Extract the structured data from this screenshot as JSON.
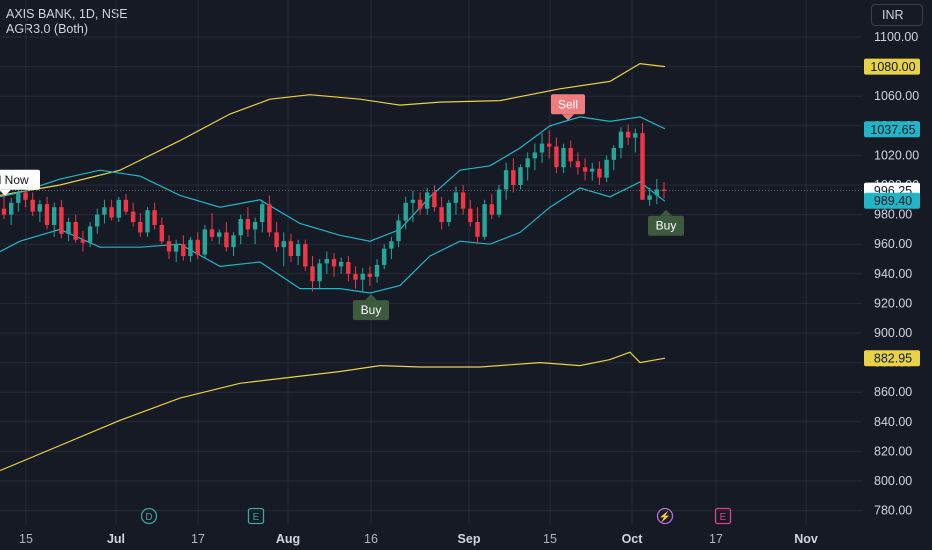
{
  "header": {
    "symbol_line": "AXIS BANK, 1D, NSE",
    "indicator_line": "AGR3.0 (Both)"
  },
  "currency_button": "INR",
  "colors": {
    "background": "#161a25",
    "up_candle": "#26a69a",
    "down_candle": "#f23645",
    "bollinger_band": "#1fb6c8",
    "envelope_band": "#e8d245",
    "sell_label": "#f07d7d",
    "buy_label": "#3d5a3f"
  },
  "chart_data": {
    "type": "candlestick",
    "title": "AXIS BANK, 1D, NSE",
    "ylim": [
      770,
      1110
    ],
    "y_ticks": [
      780,
      800,
      820,
      840,
      860,
      880,
      900,
      920,
      940,
      960,
      980,
      1000,
      1020,
      1040,
      1060,
      1080,
      1100
    ],
    "y_tick_labels": [
      "780.00",
      "800.00",
      "820.00",
      "840.00",
      "860.00",
      "880.00",
      "900.00",
      "920.00",
      "940.00",
      "960.00",
      "980.00",
      "1000.00",
      "1020.00",
      "1040.00",
      "1060.00",
      "1080.00",
      "1100.00"
    ],
    "x_tick_labels": [
      {
        "label": "15",
        "bold": false
      },
      {
        "label": "Jul",
        "bold": true
      },
      {
        "label": "17",
        "bold": false
      },
      {
        "label": "Aug",
        "bold": true
      },
      {
        "label": "16",
        "bold": false
      },
      {
        "label": "Sep",
        "bold": true
      },
      {
        "label": "15",
        "bold": false
      },
      {
        "label": "Oct",
        "bold": true
      },
      {
        "label": "17",
        "bold": false
      },
      {
        "label": "Nov",
        "bold": true
      }
    ],
    "price_badges": [
      {
        "label": "1080.00",
        "value": 1080.0,
        "kind": "envelope"
      },
      {
        "label": "1037.65",
        "value": 1037.65,
        "kind": "band"
      },
      {
        "label": "996.25",
        "value": 996.25,
        "kind": "last"
      },
      {
        "label": "989.40",
        "value": 989.4,
        "kind": "band"
      },
      {
        "label": "882.95",
        "value": 882.95,
        "kind": "envelope"
      }
    ],
    "signals": [
      {
        "label": "Sell Now",
        "kind": "sell-now",
        "price": 990
      },
      {
        "label": "Sell",
        "kind": "sell",
        "price": 1041
      },
      {
        "label": "Buy",
        "kind": "buy",
        "price": 929
      },
      {
        "label": "Buy",
        "kind": "buy",
        "price": 986
      }
    ],
    "event_markers": [
      "D",
      "E",
      "⚡",
      "E"
    ],
    "candles": [
      [
        984,
        994,
        977,
        980
      ],
      [
        980,
        991,
        973,
        988
      ],
      [
        988,
        999,
        982,
        995
      ],
      [
        995,
        1003,
        985,
        990
      ],
      [
        990,
        995,
        979,
        982
      ],
      [
        982,
        990,
        975,
        987
      ],
      [
        987,
        992,
        970,
        973
      ],
      [
        973,
        988,
        965,
        985
      ],
      [
        985,
        990,
        964,
        967
      ],
      [
        967,
        978,
        962,
        975
      ],
      [
        975,
        980,
        961,
        963
      ],
      [
        963,
        969,
        955,
        961
      ],
      [
        961,
        975,
        958,
        972
      ],
      [
        972,
        984,
        967,
        980
      ],
      [
        980,
        990,
        974,
        985
      ],
      [
        985,
        990,
        976,
        978
      ],
      [
        978,
        992,
        975,
        990
      ],
      [
        990,
        994,
        980,
        982
      ],
      [
        982,
        988,
        972,
        975
      ],
      [
        975,
        981,
        965,
        968
      ],
      [
        968,
        985,
        965,
        983
      ],
      [
        983,
        988,
        970,
        973
      ],
      [
        973,
        978,
        960,
        962
      ],
      [
        962,
        966,
        950,
        955
      ],
      [
        955,
        963,
        948,
        960
      ],
      [
        960,
        966,
        949,
        952
      ],
      [
        952,
        965,
        948,
        963
      ],
      [
        963,
        968,
        950,
        953
      ],
      [
        953,
        973,
        951,
        970
      ],
      [
        970,
        981,
        962,
        965
      ],
      [
        965,
        970,
        960,
        968
      ],
      [
        968,
        975,
        955,
        958
      ],
      [
        958,
        968,
        952,
        966
      ],
      [
        966,
        980,
        960,
        977
      ],
      [
        977,
        985,
        965,
        970
      ],
      [
        970,
        978,
        960,
        975
      ],
      [
        975,
        990,
        968,
        987
      ],
      [
        987,
        993,
        965,
        968
      ],
      [
        968,
        975,
        955,
        958
      ],
      [
        958,
        968,
        945,
        962
      ],
      [
        962,
        967,
        948,
        952
      ],
      [
        952,
        963,
        946,
        960
      ],
      [
        960,
        963,
        942,
        945
      ],
      [
        945,
        952,
        928,
        935
      ],
      [
        935,
        950,
        930,
        947
      ],
      [
        947,
        955,
        940,
        950
      ],
      [
        950,
        954,
        938,
        945
      ],
      [
        945,
        951,
        940,
        948
      ],
      [
        948,
        952,
        935,
        940
      ],
      [
        940,
        945,
        930,
        936
      ],
      [
        936,
        944,
        928,
        940
      ],
      [
        940,
        945,
        932,
        938
      ],
      [
        938,
        950,
        934,
        946
      ],
      [
        946,
        960,
        943,
        957
      ],
      [
        957,
        965,
        950,
        962
      ],
      [
        962,
        980,
        958,
        976
      ],
      [
        976,
        992,
        970,
        988
      ],
      [
        988,
        996,
        975,
        990
      ],
      [
        990,
        995,
        980,
        984
      ],
      [
        984,
        998,
        980,
        995
      ],
      [
        995,
        1000,
        982,
        985
      ],
      [
        985,
        992,
        970,
        975
      ],
      [
        975,
        990,
        972,
        988
      ],
      [
        988,
        999,
        980,
        995
      ],
      [
        995,
        1000,
        980,
        984
      ],
      [
        984,
        990,
        972,
        975
      ],
      [
        975,
        985,
        960,
        965
      ],
      [
        965,
        990,
        963,
        987
      ],
      [
        987,
        994,
        977,
        980
      ],
      [
        980,
        1000,
        978,
        997
      ],
      [
        997,
        1015,
        990,
        1010
      ],
      [
        1010,
        1018,
        995,
        1000
      ],
      [
        1000,
        1014,
        997,
        1012
      ],
      [
        1012,
        1022,
        1003,
        1018
      ],
      [
        1018,
        1028,
        1010,
        1022
      ],
      [
        1022,
        1035,
        1015,
        1028
      ],
      [
        1028,
        1037,
        1018,
        1026
      ],
      [
        1026,
        1032,
        1008,
        1012
      ],
      [
        1012,
        1028,
        1008,
        1025
      ],
      [
        1025,
        1030,
        1012,
        1016
      ],
      [
        1016,
        1022,
        1007,
        1012
      ],
      [
        1012,
        1018,
        1003,
        1009
      ],
      [
        1009,
        1015,
        1003,
        1011
      ],
      [
        1011,
        1016,
        1000,
        1005
      ],
      [
        1005,
        1020,
        1002,
        1017
      ],
      [
        1017,
        1027,
        1010,
        1025
      ],
      [
        1025,
        1039,
        1018,
        1036
      ],
      [
        1036,
        1041,
        1027,
        1032
      ],
      [
        1032,
        1038,
        1022,
        1035
      ],
      [
        1035,
        1042,
        992,
        990
      ],
      [
        990,
        998,
        986,
        993
      ],
      [
        993,
        1004,
        987,
        997
      ],
      [
        997,
        1002,
        991,
        996
      ]
    ],
    "band_upper": [
      [
        0,
        992
      ],
      [
        20,
        995
      ],
      [
        60,
        1004
      ],
      [
        100,
        1010
      ],
      [
        140,
        1006
      ],
      [
        180,
        993
      ],
      [
        220,
        985
      ],
      [
        260,
        990
      ],
      [
        300,
        974
      ],
      [
        340,
        966
      ],
      [
        370,
        962
      ],
      [
        400,
        970
      ],
      [
        430,
        992
      ],
      [
        460,
        1010
      ],
      [
        490,
        1013
      ],
      [
        520,
        1025
      ],
      [
        550,
        1040
      ],
      [
        580,
        1046
      ],
      [
        610,
        1043
      ],
      [
        640,
        1046
      ],
      [
        665,
        1038
      ]
    ],
    "band_lower": [
      [
        0,
        955
      ],
      [
        20,
        962
      ],
      [
        60,
        970
      ],
      [
        100,
        958
      ],
      [
        140,
        958
      ],
      [
        180,
        960
      ],
      [
        220,
        945
      ],
      [
        260,
        948
      ],
      [
        300,
        930
      ],
      [
        340,
        930
      ],
      [
        370,
        927
      ],
      [
        400,
        932
      ],
      [
        430,
        952
      ],
      [
        460,
        962
      ],
      [
        490,
        960
      ],
      [
        520,
        968
      ],
      [
        550,
        985
      ],
      [
        580,
        998
      ],
      [
        610,
        992
      ],
      [
        640,
        1002
      ],
      [
        665,
        989
      ]
    ],
    "env_upper": [
      [
        0,
        993
      ],
      [
        60,
        1000
      ],
      [
        120,
        1010
      ],
      [
        180,
        1030
      ],
      [
        230,
        1048
      ],
      [
        270,
        1058
      ],
      [
        310,
        1061
      ],
      [
        360,
        1058
      ],
      [
        400,
        1054
      ],
      [
        440,
        1056
      ],
      [
        500,
        1057
      ],
      [
        560,
        1065
      ],
      [
        610,
        1070
      ],
      [
        640,
        1082
      ],
      [
        665,
        1080
      ]
    ],
    "env_lower": [
      [
        0,
        807
      ],
      [
        60,
        824
      ],
      [
        120,
        841
      ],
      [
        180,
        856
      ],
      [
        240,
        866
      ],
      [
        290,
        870
      ],
      [
        340,
        874
      ],
      [
        380,
        878
      ],
      [
        420,
        877
      ],
      [
        480,
        877
      ],
      [
        540,
        880
      ],
      [
        580,
        878
      ],
      [
        610,
        882
      ],
      [
        630,
        887
      ],
      [
        640,
        880
      ],
      [
        665,
        883
      ]
    ]
  }
}
